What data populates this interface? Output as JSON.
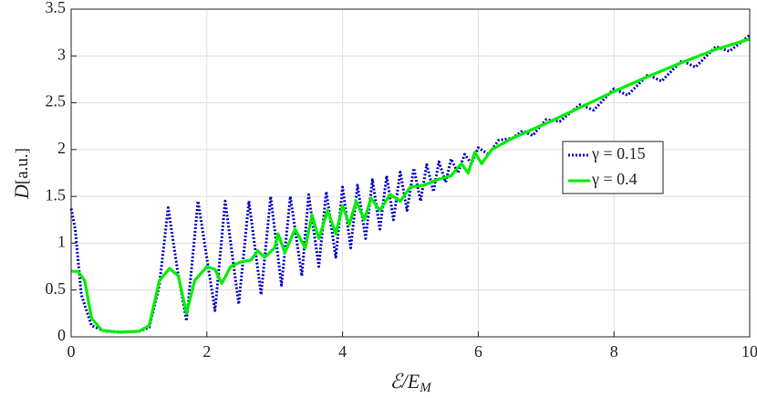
{
  "chart_data": {
    "type": "line",
    "xlabel": {
      "main": "ℰ/E",
      "sub": "M"
    },
    "ylabel": {
      "main": "D",
      "unit": "[a.u.]"
    },
    "xlim": [
      0,
      10
    ],
    "xticks": [
      0,
      2,
      4,
      6,
      8,
      10
    ],
    "ylim": [
      0,
      3.5
    ],
    "yticks": [
      0,
      0.5,
      1,
      1.5,
      2,
      2.5,
      3,
      3.5
    ],
    "grid": true,
    "legend": "right",
    "series": [
      {
        "name": "γ = 0.15",
        "color": "#0000cc",
        "dash": "dotted",
        "x": [
          0,
          0.06,
          0.15,
          0.3,
          0.5,
          0.75,
          1.0,
          1.15,
          1.3,
          1.43,
          1.57,
          1.7,
          1.87,
          2.12,
          2.27,
          2.47,
          2.62,
          2.8,
          2.94,
          3.1,
          3.23,
          3.4,
          3.5,
          3.65,
          3.76,
          3.9,
          4.0,
          4.12,
          4.22,
          4.34,
          4.44,
          4.55,
          4.65,
          4.75,
          4.85,
          4.95,
          5.05,
          5.15,
          5.24,
          5.34,
          5.42,
          5.52,
          5.6,
          5.7,
          5.8,
          5.9,
          6.0,
          6.15,
          6.3,
          6.5,
          6.65,
          6.8,
          7.0,
          7.2,
          7.5,
          7.7,
          8.0,
          8.2,
          8.5,
          8.7,
          9.0,
          9.2,
          9.5,
          9.7,
          10
        ],
        "values": [
          1.37,
          1.15,
          0.45,
          0.12,
          0.06,
          0.05,
          0.06,
          0.1,
          0.55,
          1.38,
          0.7,
          0.17,
          1.45,
          0.28,
          1.45,
          0.35,
          1.45,
          0.45,
          1.5,
          0.55,
          1.5,
          0.65,
          1.52,
          0.75,
          1.55,
          0.85,
          1.6,
          0.95,
          1.62,
          1.05,
          1.68,
          1.15,
          1.72,
          1.25,
          1.76,
          1.35,
          1.8,
          1.45,
          1.84,
          1.55,
          1.87,
          1.65,
          1.9,
          1.75,
          1.95,
          1.85,
          2.02,
          1.95,
          2.1,
          2.12,
          2.2,
          2.15,
          2.32,
          2.3,
          2.48,
          2.42,
          2.65,
          2.58,
          2.8,
          2.73,
          2.95,
          2.88,
          3.1,
          3.05,
          3.22
        ]
      },
      {
        "name": "γ = 0.4",
        "color": "#00ee00",
        "dash": "solid",
        "x": [
          0,
          0.1,
          0.2,
          0.3,
          0.45,
          0.7,
          1.0,
          1.15,
          1.3,
          1.45,
          1.58,
          1.7,
          1.82,
          2.0,
          2.12,
          2.22,
          2.35,
          2.5,
          2.65,
          2.75,
          2.85,
          3.0,
          3.05,
          3.15,
          3.3,
          3.45,
          3.55,
          3.65,
          3.78,
          3.9,
          4.0,
          4.1,
          4.2,
          4.32,
          4.42,
          4.55,
          4.7,
          4.85,
          5.0,
          5.2,
          5.4,
          5.6,
          5.75,
          5.85,
          5.95,
          6.05,
          6.2,
          6.5,
          7.0,
          7.5,
          8.0,
          8.5,
          9.0,
          9.5,
          10
        ],
        "values": [
          0.7,
          0.7,
          0.6,
          0.2,
          0.07,
          0.05,
          0.06,
          0.12,
          0.6,
          0.73,
          0.65,
          0.25,
          0.6,
          0.75,
          0.72,
          0.57,
          0.75,
          0.8,
          0.82,
          0.92,
          0.85,
          0.95,
          1.1,
          0.9,
          1.15,
          0.95,
          1.3,
          1.05,
          1.35,
          1.1,
          1.4,
          1.2,
          1.45,
          1.25,
          1.48,
          1.35,
          1.52,
          1.45,
          1.6,
          1.62,
          1.68,
          1.72,
          1.85,
          1.75,
          1.97,
          1.85,
          2.0,
          2.12,
          2.28,
          2.45,
          2.62,
          2.78,
          2.93,
          3.07,
          3.18
        ]
      }
    ]
  }
}
